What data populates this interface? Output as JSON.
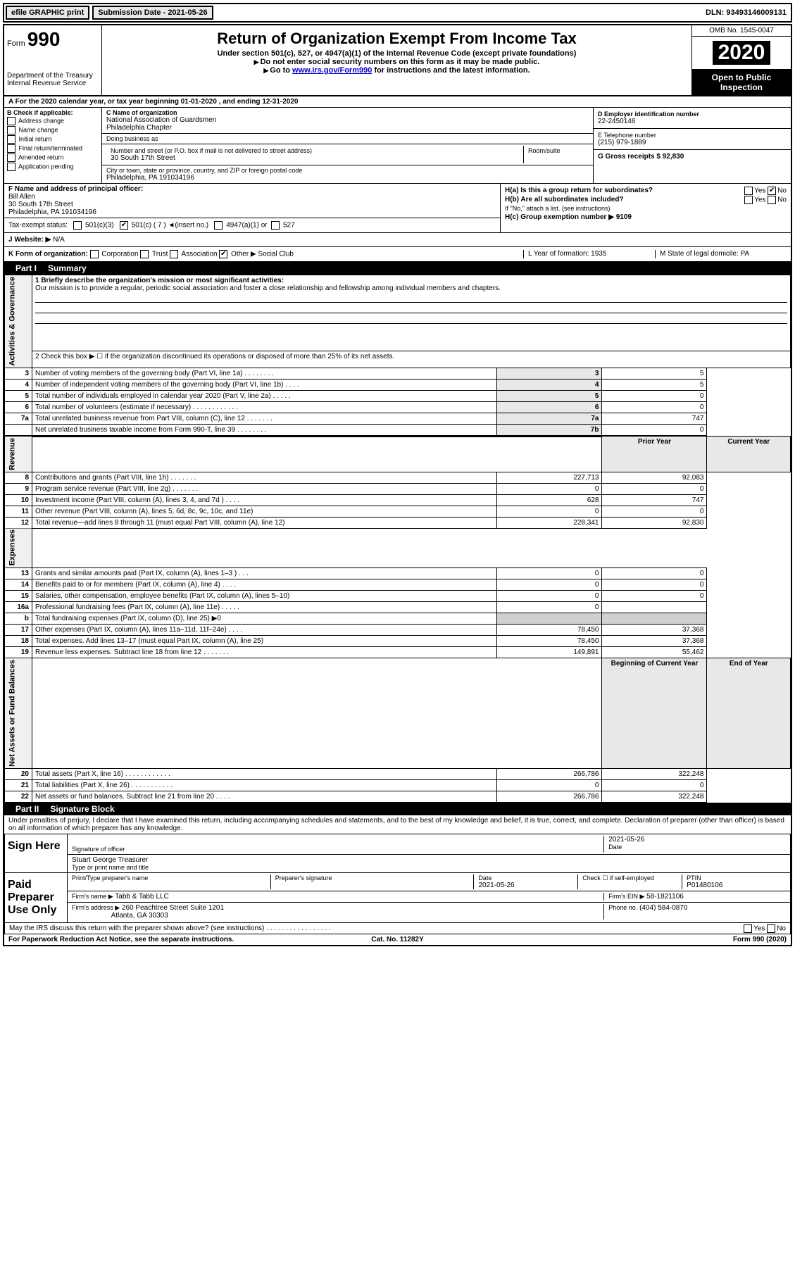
{
  "topbar": {
    "efile": "efile GRAPHIC print",
    "submission_label": "Submission Date - 2021-05-26",
    "dln_label": "DLN: 93493146009131"
  },
  "header": {
    "form_label": "Form",
    "form_number": "990",
    "dept": "Department of the Treasury\nInternal Revenue Service",
    "title": "Return of Organization Exempt From Income Tax",
    "subtitle": "Under section 501(c), 527, or 4947(a)(1) of the Internal Revenue Code (except private foundations)",
    "note1": "Do not enter social security numbers on this form as it may be made public.",
    "note2_pre": "Go to ",
    "note2_link": "www.irs.gov/Form990",
    "note2_post": " for instructions and the latest information.",
    "omb": "OMB No. 1545-0047",
    "year": "2020",
    "open_public": "Open to Public Inspection"
  },
  "row_a": "A For the 2020 calendar year, or tax year beginning 01-01-2020   , and ending 12-31-2020",
  "section_b": {
    "label": "B Check if applicable:",
    "items": [
      "Address change",
      "Name change",
      "Initial return",
      "Final return/terminated",
      "Amended return",
      "Application pending"
    ]
  },
  "section_c": {
    "name_label": "C Name of organization",
    "name": "National Association of Guardsmen\nPhiladelphia Chapter",
    "dba_label": "Doing business as",
    "addr_label": "Number and street (or P.O. box if mail is not delivered to street address)",
    "room_label": "Room/suite",
    "addr": "30 South 17th Street",
    "city_label": "City or town, state or province, country, and ZIP or foreign postal code",
    "city": "Philadelphia, PA  191034196"
  },
  "section_d": {
    "label": "D Employer identification number",
    "value": "22-2450146"
  },
  "section_e": {
    "label": "E Telephone number",
    "value": "(215) 979-1889"
  },
  "section_g": {
    "label": "G Gross receipts $ 92,830"
  },
  "section_f": {
    "label": "F  Name and address of principal officer:",
    "name": "Bill Allen",
    "addr1": "30 South 17th Street",
    "addr2": "Philadelphia, PA  191034196"
  },
  "tax_status": {
    "label": "Tax-exempt status:",
    "opt1": "501(c)(3)",
    "opt2": "501(c) ( 7 ) ◄(insert no.)",
    "opt3": "4947(a)(1) or",
    "opt4": "527"
  },
  "section_h": {
    "ha": "H(a)  Is this a group return for subordinates?",
    "hb": "H(b)  Are all subordinates included?",
    "hb_note": "If \"No,\" attach a list. (see instructions)",
    "hc": "H(c)  Group exemption number ▶   9109",
    "yes": "Yes",
    "no": "No"
  },
  "section_j": {
    "label": "J   Website: ▶",
    "value": "N/A"
  },
  "section_k": {
    "label": "K Form of organization:",
    "corp": "Corporation",
    "trust": "Trust",
    "assoc": "Association",
    "other": "Other ▶",
    "other_val": "Social Club",
    "l_label": "L Year of formation: 1935",
    "m_label": "M State of legal domicile: PA"
  },
  "part1": {
    "header": "Part I",
    "title": "Summary",
    "line1_label": "1   Briefly describe the organization's mission or most significant activities:",
    "mission": "Our mission is to provide a regular, periodic social association and foster a close relationship and fellowship among individual members and chapters.",
    "line2": "2   Check this box ▶ ☐  if the organization discontinued its operations or disposed of more than 25% of its net assets.",
    "sidebar_ag": "Activities & Governance",
    "sidebar_rev": "Revenue",
    "sidebar_exp": "Expenses",
    "sidebar_na": "Net Assets or Fund Balances",
    "prior_year": "Prior Year",
    "current_year": "Current Year",
    "boy": "Beginning of Current Year",
    "eoy": "End of Year",
    "rows_ag": [
      {
        "n": "3",
        "t": "Number of voting members of the governing body (Part VI, line 1a)  .  .  .  .  .  .  .  .",
        "box": "3",
        "v": "5"
      },
      {
        "n": "4",
        "t": "Number of independent voting members of the governing body (Part VI, line 1b)  .  .  .  .",
        "box": "4",
        "v": "5"
      },
      {
        "n": "5",
        "t": "Total number of individuals employed in calendar year 2020 (Part V, line 2a)  .  .  .  .  .",
        "box": "5",
        "v": "0"
      },
      {
        "n": "6",
        "t": "Total number of volunteers (estimate if necessary)   .  .  .  .  .  .  .  .  .  .  .  .",
        "box": "6",
        "v": "0"
      },
      {
        "n": "7a",
        "t": "Total unrelated business revenue from Part VIII, column (C), line 12  .  .  .  .  .  .  .",
        "box": "7a",
        "v": "747"
      },
      {
        "n": "",
        "t": "Net unrelated business taxable income from Form 990-T, line 39   .  .  .  .  .  .  .  .",
        "box": "7b",
        "v": "0"
      }
    ],
    "rows_rev": [
      {
        "n": "8",
        "t": "Contributions and grants (Part VIII, line 1h)   .  .  .  .  .  .  .",
        "p": "227,713",
        "c": "92,083"
      },
      {
        "n": "9",
        "t": "Program service revenue (Part VIII, line 2g)   .  .  .  .  .  .  .",
        "p": "0",
        "c": "0"
      },
      {
        "n": "10",
        "t": "Investment income (Part VIII, column (A), lines 3, 4, and 7d )   .  .  .  .",
        "p": "628",
        "c": "747"
      },
      {
        "n": "11",
        "t": "Other revenue (Part VIII, column (A), lines 5, 6d, 8c, 9c, 10c, and 11e)",
        "p": "0",
        "c": "0"
      },
      {
        "n": "12",
        "t": "Total revenue—add lines 8 through 11 (must equal Part VIII, column (A), line 12)",
        "p": "228,341",
        "c": "92,830"
      }
    ],
    "rows_exp": [
      {
        "n": "13",
        "t": "Grants and similar amounts paid (Part IX, column (A), lines 1–3 )  .  .  .",
        "p": "0",
        "c": "0"
      },
      {
        "n": "14",
        "t": "Benefits paid to or for members (Part IX, column (A), line 4)  .  .  .  .",
        "p": "0",
        "c": "0"
      },
      {
        "n": "15",
        "t": "Salaries, other compensation, employee benefits (Part IX, column (A), lines 5–10)",
        "p": "0",
        "c": "0"
      },
      {
        "n": "16a",
        "t": "Professional fundraising fees (Part IX, column (A), line 11e)  .  .  .  .  .",
        "p": "0",
        "c": ""
      },
      {
        "n": "b",
        "t": "Total fundraising expenses (Part IX, column (D), line 25) ▶0",
        "p": "",
        "c": "",
        "shaded": true
      },
      {
        "n": "17",
        "t": "Other expenses (Part IX, column (A), lines 11a–11d, 11f–24e)  .  .  .  .",
        "p": "78,450",
        "c": "37,368"
      },
      {
        "n": "18",
        "t": "Total expenses. Add lines 13–17 (must equal Part IX, column (A), line 25)",
        "p": "78,450",
        "c": "37,368"
      },
      {
        "n": "19",
        "t": "Revenue less expenses. Subtract line 18 from line 12 .  .  .  .  .  .  .",
        "p": "149,891",
        "c": "55,462"
      }
    ],
    "rows_na": [
      {
        "n": "20",
        "t": "Total assets (Part X, line 16)  .  .  .  .  .  .  .  .  .  .  .  .",
        "p": "266,786",
        "c": "322,248"
      },
      {
        "n": "21",
        "t": "Total liabilities (Part X, line 26)  .  .  .  .  .  .  .  .  .  .  .",
        "p": "0",
        "c": "0"
      },
      {
        "n": "22",
        "t": "Net assets or fund balances. Subtract line 21 from line 20  .  .  .  .",
        "p": "266,786",
        "c": "322,248"
      }
    ]
  },
  "part2": {
    "header": "Part II",
    "title": "Signature Block",
    "declaration": "Under penalties of perjury, I declare that I have examined this return, including accompanying schedules and statements, and to the best of my knowledge and belief, it is true, correct, and complete. Declaration of preparer (other than officer) is based on all information of which preparer has any knowledge.",
    "sign_here": "Sign Here",
    "sig_officer": "Signature of officer",
    "date_label": "Date",
    "officer_date": "2021-05-26",
    "officer_name": "Stuart George  Treasurer",
    "type_name": "Type or print name and title",
    "paid_prep": "Paid Preparer Use Only",
    "prep_name_label": "Print/Type preparer's name",
    "prep_sig_label": "Preparer's signature",
    "prep_date": "2021-05-26",
    "check_if": "Check ☐ if self-employed",
    "ptin_label": "PTIN",
    "ptin": "P01480106",
    "firm_name_label": "Firm's name    ▶",
    "firm_name": "Tabb & Tabb LLC",
    "firm_ein_label": "Firm's EIN ▶",
    "firm_ein": "58-1821106",
    "firm_addr_label": "Firm's address ▶",
    "firm_addr1": "260 Peachtree Street Suite 1201",
    "firm_addr2": "Atlanta, GA  30303",
    "phone_label": "Phone no.",
    "phone": "(404) 584-0870",
    "discuss": "May the IRS discuss this return with the preparer shown above? (see instructions)   .  .  .  .  .  .  .  .  .  .  .  .  .  .  .  .  ."
  },
  "footer": {
    "left": "For Paperwork Reduction Act Notice, see the separate instructions.",
    "center": "Cat. No. 11282Y",
    "right": "Form 990 (2020)"
  }
}
